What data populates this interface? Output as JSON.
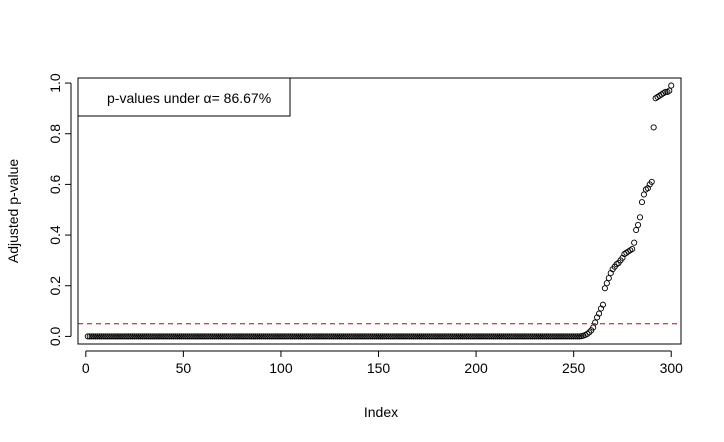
{
  "chart_data": {
    "type": "scatter",
    "title": "",
    "xlabel": "Index",
    "ylabel": "Adjusted p-value",
    "xlim": [
      -4,
      305
    ],
    "ylim": [
      -0.03,
      1.02
    ],
    "x_ticks": [
      0,
      50,
      100,
      150,
      200,
      250,
      300
    ],
    "y_ticks": [
      0.0,
      0.2,
      0.4,
      0.6,
      0.8,
      1.0
    ],
    "x_tick_labels": [
      "0",
      "50",
      "100",
      "150",
      "200",
      "250",
      "300"
    ],
    "y_tick_labels": [
      "0.0",
      "0.2",
      "0.4",
      "0.6",
      "0.8",
      "1.0"
    ],
    "grid": false,
    "threshold": {
      "value": 0.05,
      "color": "#cc0000",
      "style": "dashed"
    },
    "legend": {
      "placement": "top-left",
      "text": "p-values under α= 86.67%"
    },
    "point_style": {
      "shape": "open-circle",
      "color": "#000000"
    },
    "series": [
      {
        "zero_run": {
          "from": 1,
          "to": 253,
          "value": 0.0
        },
        "tail": [
          [
            254,
            0.001
          ],
          [
            255,
            0.003
          ],
          [
            256,
            0.006
          ],
          [
            257,
            0.01
          ],
          [
            258,
            0.016
          ],
          [
            259,
            0.024
          ],
          [
            260,
            0.035
          ],
          [
            261,
            0.055
          ],
          [
            262,
            0.075
          ],
          [
            263,
            0.09
          ],
          [
            264,
            0.11
          ],
          [
            265,
            0.125
          ],
          [
            266,
            0.19
          ],
          [
            267,
            0.21
          ],
          [
            268,
            0.23
          ],
          [
            269,
            0.25
          ],
          [
            270,
            0.265
          ],
          [
            271,
            0.275
          ],
          [
            272,
            0.285
          ],
          [
            273,
            0.29
          ],
          [
            274,
            0.3
          ],
          [
            275,
            0.31
          ],
          [
            276,
            0.325
          ],
          [
            277,
            0.33
          ],
          [
            278,
            0.335
          ],
          [
            279,
            0.34
          ],
          [
            280,
            0.345
          ],
          [
            281,
            0.37
          ],
          [
            282,
            0.42
          ],
          [
            283,
            0.44
          ],
          [
            284,
            0.47
          ],
          [
            285,
            0.53
          ],
          [
            286,
            0.56
          ],
          [
            287,
            0.58
          ],
          [
            288,
            0.585
          ],
          [
            289,
            0.6
          ],
          [
            290,
            0.61
          ],
          [
            291,
            0.825
          ],
          [
            292,
            0.94
          ],
          [
            293,
            0.945
          ],
          [
            294,
            0.95
          ],
          [
            295,
            0.955
          ],
          [
            296,
            0.96
          ],
          [
            297,
            0.965
          ],
          [
            298,
            0.965
          ],
          [
            299,
            0.97
          ],
          [
            300,
            0.99
          ]
        ]
      }
    ]
  }
}
